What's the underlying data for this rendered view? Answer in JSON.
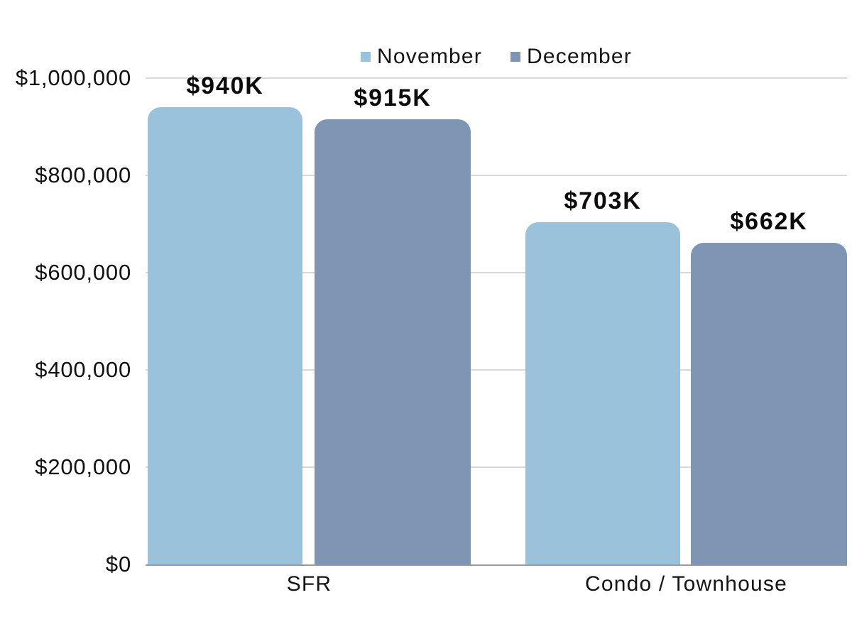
{
  "chart_data": {
    "type": "bar",
    "categories": [
      "SFR",
      "Condo / Townhouse"
    ],
    "series": [
      {
        "name": "November",
        "color": "#9ac2da",
        "values": [
          940000,
          703000
        ],
        "labels": [
          "$940K",
          "$703K"
        ]
      },
      {
        "name": "December",
        "color": "#7e96b4",
        "values": [
          915000,
          662000
        ],
        "labels": [
          "$915K",
          "$662K"
        ]
      }
    ],
    "ylim": [
      0,
      1000000
    ],
    "y_ticks": [
      "$1,000,000",
      "$800,000",
      "$600,000",
      "$400,000",
      "$200,000",
      "$0"
    ],
    "grid": "horizontal",
    "legend_position": "top",
    "title": "",
    "xlabel": "",
    "ylabel": ""
  },
  "colors": {
    "gridline": "#d8d8d8",
    "baseline": "#9a9a9a",
    "text": "#141414",
    "background": "#ffffff"
  }
}
